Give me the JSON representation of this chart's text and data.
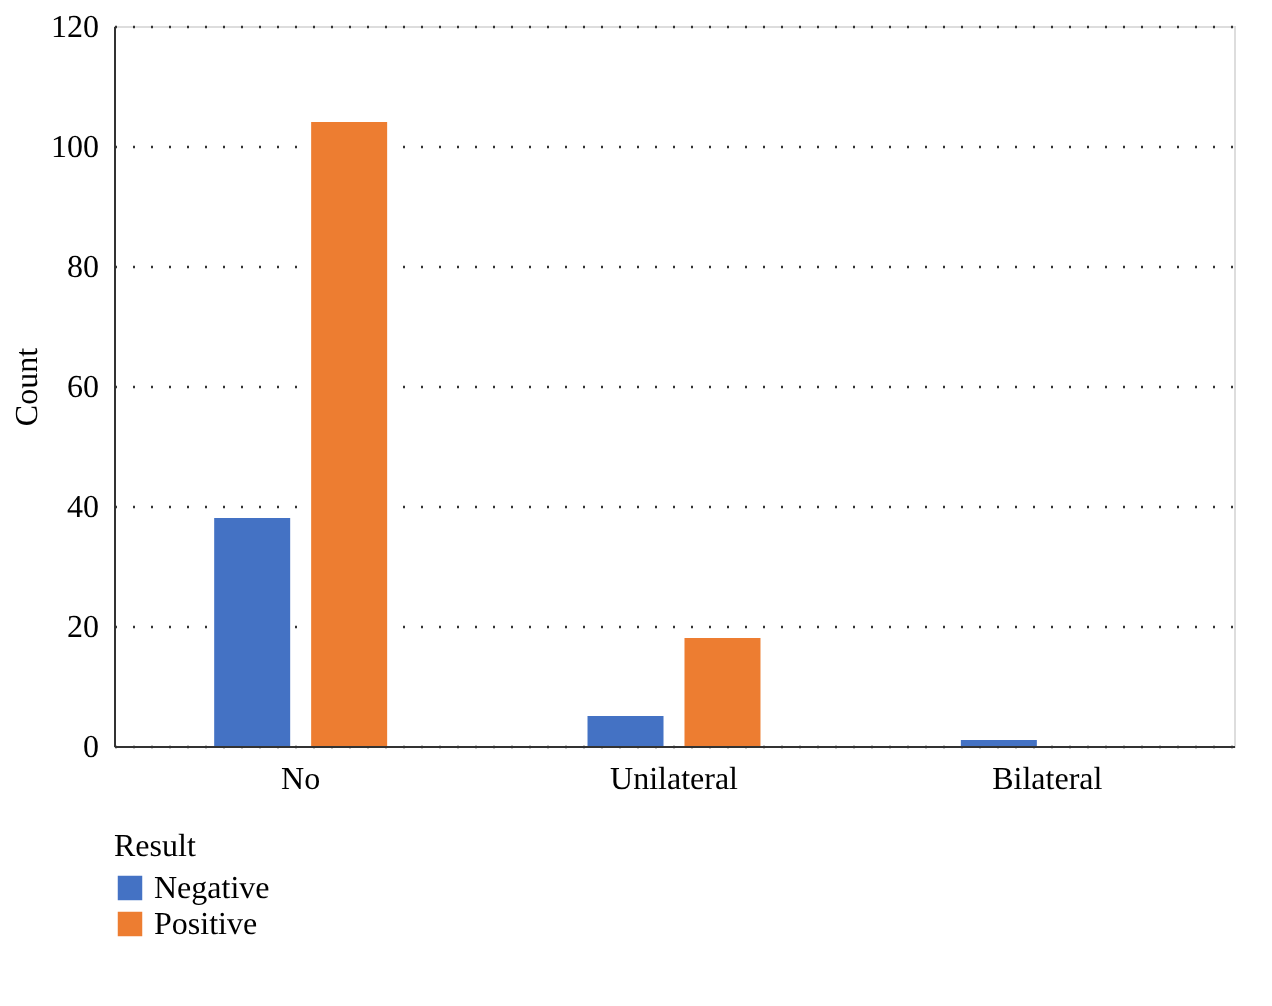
{
  "chart_data": {
    "type": "bar",
    "ylabel": "Count",
    "legend_title": "Result",
    "categories": [
      "No",
      "Unilateral",
      "Bilateral"
    ],
    "series": [
      {
        "name": "Negative",
        "color": "#4472c4",
        "values": [
          38,
          5,
          1
        ]
      },
      {
        "name": "Positive",
        "color": "#ed7d31",
        "values": [
          104,
          18,
          0
        ]
      }
    ],
    "ylim": [
      0,
      120
    ],
    "yticks": [
      0,
      20,
      40,
      60,
      80,
      100,
      120
    ],
    "grid": "y",
    "legend": "bottom left"
  }
}
